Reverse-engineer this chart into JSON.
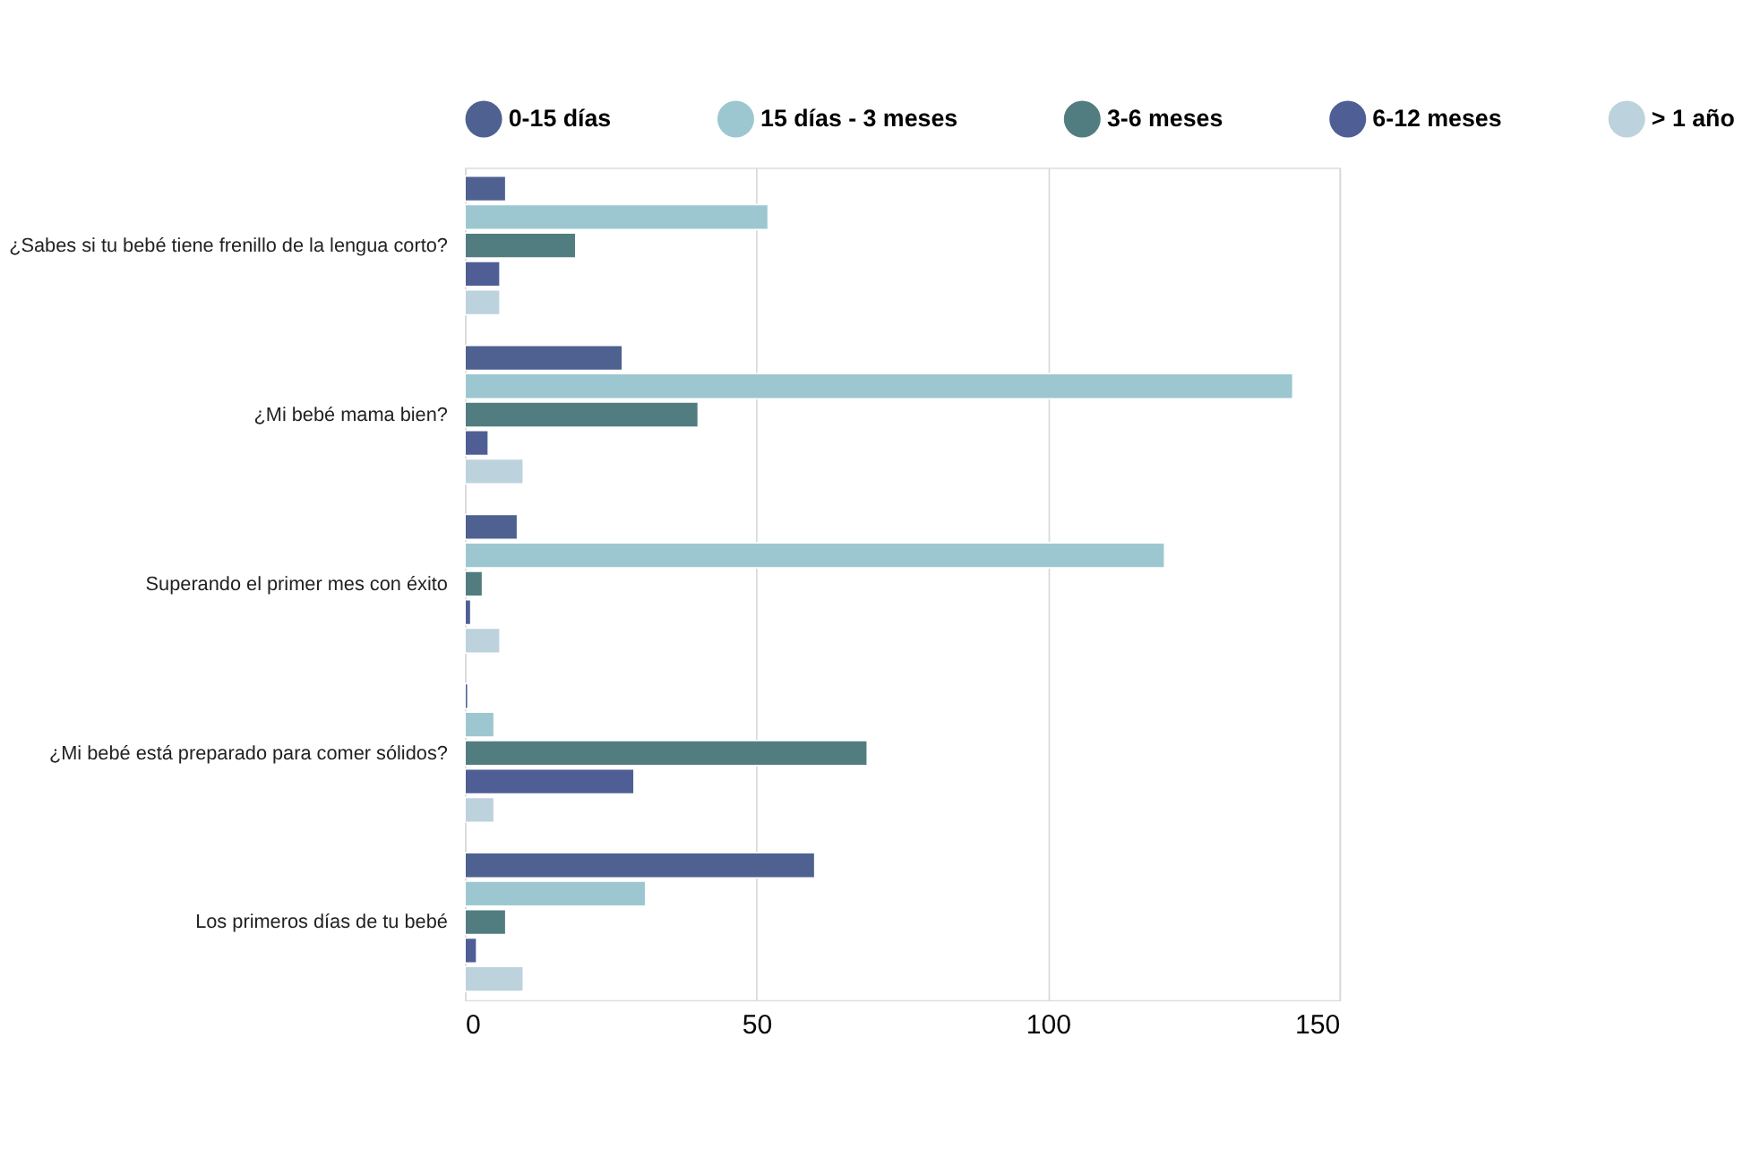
{
  "chart_data": {
    "type": "bar",
    "orientation": "horizontal",
    "categories": [
      "¿Sabes si tu bebé tiene frenillo de la lengua corto?",
      "¿Mi bebé mama bien?",
      "Superando el primer mes con éxito",
      "¿Mi bebé está preparado para comer sólidos?",
      "Los primeros días de tu bebé"
    ],
    "series": [
      {
        "name": "0-15 días",
        "color": "#4f6190",
        "values": [
          7,
          27,
          9,
          0.5,
          60
        ]
      },
      {
        "name": "15 días - 3 meses",
        "color": "#9dc7d0",
        "values": [
          52,
          142,
          120,
          5,
          31
        ]
      },
      {
        "name": "3-6 meses",
        "color": "#517d80",
        "values": [
          19,
          40,
          3,
          69,
          7
        ]
      },
      {
        "name": "6-12 meses",
        "color": "#4f5f95",
        "values": [
          6,
          4,
          1,
          29,
          2
        ]
      },
      {
        "name": "> 1 año",
        "color": "#bcd2dc",
        "values": [
          6,
          10,
          6,
          5,
          10
        ]
      }
    ],
    "xlim": [
      0,
      150
    ],
    "xticks": [
      0,
      50,
      100,
      150
    ],
    "grid": "x",
    "legend": "top"
  }
}
